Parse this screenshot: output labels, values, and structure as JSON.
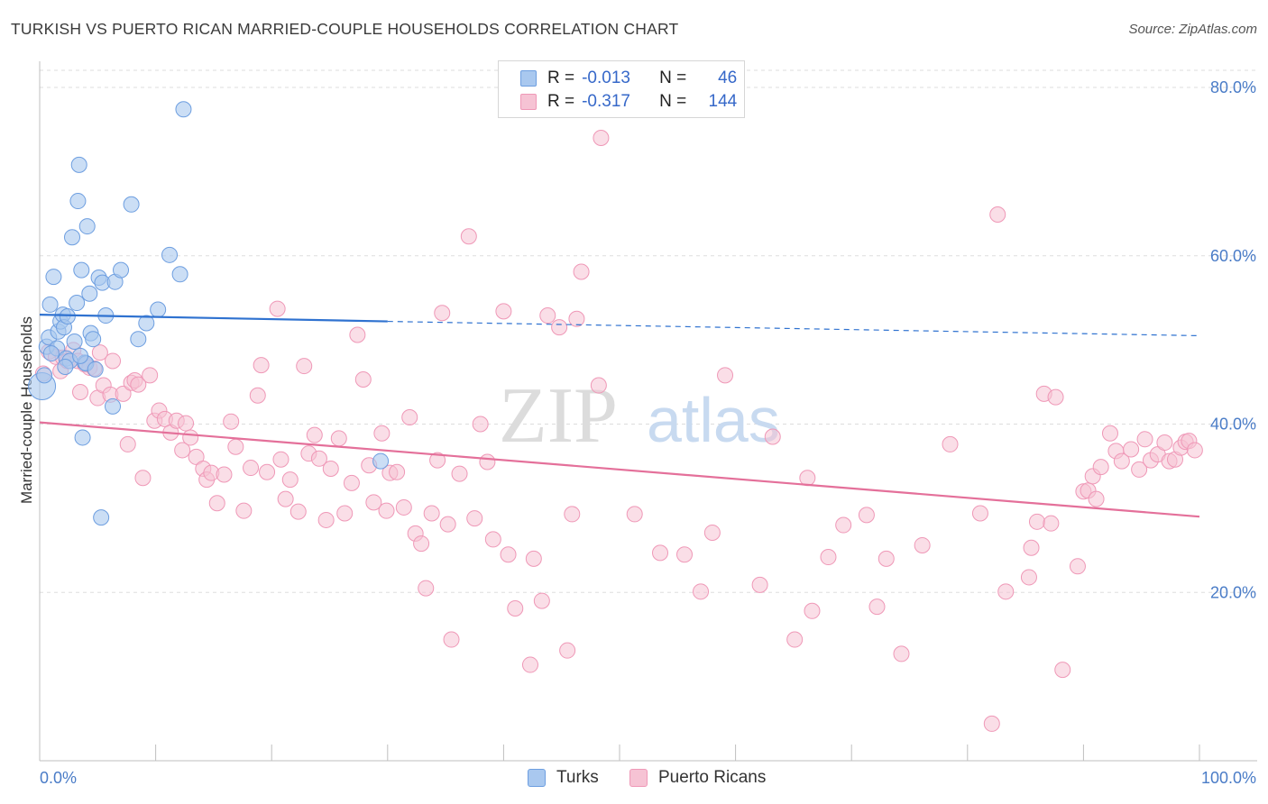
{
  "title": "TURKISH VS PUERTO RICAN MARRIED-COUPLE HOUSEHOLDS CORRELATION CHART",
  "source": "Source: ZipAtlas.com",
  "watermark": {
    "zip": "ZIP",
    "atlas": "atlas"
  },
  "legend_top": {
    "rows": [
      {
        "r_label": "R =",
        "r_value": "-0.013",
        "n_label": "N =",
        "n_value": "46"
      },
      {
        "r_label": "R =",
        "r_value": "-0.317",
        "n_label": "N =",
        "n_value": "144"
      }
    ]
  },
  "legend_bottom": {
    "items": [
      "Turks",
      "Puerto Ricans"
    ]
  },
  "colors": {
    "turks_fill": "#a9c8ef",
    "turks_stroke": "#6d9ee0",
    "turks_line": "#2f72d0",
    "pr_fill": "#f6c3d4",
    "pr_stroke": "#ef98b7",
    "pr_line": "#e4709a",
    "tick_text": "#4a7cc7",
    "grid": "#dddddd"
  },
  "chart_data": {
    "type": "scatter",
    "title": "TURKISH VS PUERTO RICAN MARRIED-COUPLE HOUSEHOLDS CORRELATION CHART",
    "xlabel": "",
    "ylabel": "Married-couple Households",
    "xlim": [
      0,
      100
    ],
    "ylim": [
      0,
      83
    ],
    "x_tick_labels": [
      "0.0%",
      "100.0%"
    ],
    "y_ticks": [
      20,
      40,
      60,
      80
    ],
    "y_tick_labels": [
      "20.0%",
      "40.0%",
      "60.0%",
      "80.0%"
    ],
    "grid": true,
    "legend_position": "top-center",
    "series": [
      {
        "name": "Turks",
        "r": -0.013,
        "n": 46,
        "trend": {
          "x": [
            0,
            30,
            100
          ],
          "y": [
            53.0,
            52.2,
            50.5
          ],
          "solid_until_x": 30
        },
        "points": [
          [
            0.2,
            44.5
          ],
          [
            0.4,
            45.8
          ],
          [
            0.6,
            49.2
          ],
          [
            0.8,
            50.3
          ],
          [
            0.9,
            54.2
          ],
          [
            1.2,
            57.5
          ],
          [
            1.5,
            49.0
          ],
          [
            1.6,
            51.0
          ],
          [
            1.8,
            52.2
          ],
          [
            2.0,
            53.0
          ],
          [
            2.1,
            51.5
          ],
          [
            2.3,
            47.8
          ],
          [
            2.4,
            52.8
          ],
          [
            2.6,
            47.5
          ],
          [
            2.8,
            62.2
          ],
          [
            3.0,
            49.8
          ],
          [
            3.2,
            54.4
          ],
          [
            3.3,
            66.5
          ],
          [
            3.4,
            70.8
          ],
          [
            3.6,
            58.3
          ],
          [
            3.7,
            38.4
          ],
          [
            3.9,
            47.3
          ],
          [
            4.0,
            47.2
          ],
          [
            4.1,
            63.5
          ],
          [
            4.3,
            55.5
          ],
          [
            4.4,
            50.8
          ],
          [
            4.6,
            50.1
          ],
          [
            5.1,
            57.4
          ],
          [
            5.3,
            28.9
          ],
          [
            5.4,
            56.8
          ],
          [
            5.7,
            52.9
          ],
          [
            6.3,
            42.1
          ],
          [
            6.5,
            56.9
          ],
          [
            7.0,
            58.3
          ],
          [
            7.9,
            66.1
          ],
          [
            8.5,
            50.1
          ],
          [
            9.2,
            52.0
          ],
          [
            10.2,
            53.6
          ],
          [
            11.2,
            60.1
          ],
          [
            12.1,
            57.8
          ],
          [
            12.4,
            77.4
          ],
          [
            29.4,
            35.6
          ],
          [
            1.0,
            48.4
          ],
          [
            2.2,
            46.8
          ],
          [
            3.5,
            48.1
          ],
          [
            4.8,
            46.5
          ]
        ]
      },
      {
        "name": "Puerto Ricans",
        "r": -0.317,
        "n": 144,
        "trend": {
          "x": [
            0,
            100
          ],
          "y": [
            40.2,
            29.0
          ]
        },
        "points": [
          [
            0.3,
            46.0
          ],
          [
            0.8,
            48.6
          ],
          [
            1.4,
            48.0
          ],
          [
            1.8,
            46.3
          ],
          [
            2.0,
            47.9
          ],
          [
            2.4,
            47.5
          ],
          [
            2.9,
            48.8
          ],
          [
            3.3,
            47.5
          ],
          [
            3.5,
            43.8
          ],
          [
            3.9,
            47.1
          ],
          [
            4.3,
            46.7
          ],
          [
            4.7,
            46.6
          ],
          [
            5.0,
            43.1
          ],
          [
            5.2,
            48.5
          ],
          [
            5.5,
            44.6
          ],
          [
            6.1,
            43.5
          ],
          [
            6.3,
            47.5
          ],
          [
            7.2,
            43.6
          ],
          [
            7.6,
            37.6
          ],
          [
            7.9,
            44.9
          ],
          [
            8.2,
            45.2
          ],
          [
            8.5,
            44.7
          ],
          [
            8.9,
            33.6
          ],
          [
            9.5,
            45.8
          ],
          [
            9.9,
            40.4
          ],
          [
            10.3,
            41.6
          ],
          [
            10.8,
            40.6
          ],
          [
            11.3,
            39.0
          ],
          [
            11.8,
            40.4
          ],
          [
            12.3,
            36.9
          ],
          [
            12.6,
            40.1
          ],
          [
            13.0,
            38.4
          ],
          [
            13.5,
            36.1
          ],
          [
            14.1,
            34.7
          ],
          [
            14.4,
            33.4
          ],
          [
            14.8,
            34.2
          ],
          [
            15.3,
            30.6
          ],
          [
            15.9,
            34.0
          ],
          [
            16.5,
            40.3
          ],
          [
            16.9,
            37.3
          ],
          [
            17.6,
            29.7
          ],
          [
            18.2,
            34.8
          ],
          [
            18.8,
            43.4
          ],
          [
            19.1,
            47.0
          ],
          [
            19.6,
            34.3
          ],
          [
            20.5,
            53.7
          ],
          [
            20.8,
            35.8
          ],
          [
            21.2,
            31.1
          ],
          [
            21.6,
            33.4
          ],
          [
            22.3,
            29.6
          ],
          [
            22.8,
            46.9
          ],
          [
            23.2,
            36.5
          ],
          [
            23.7,
            38.7
          ],
          [
            24.1,
            35.9
          ],
          [
            24.7,
            28.6
          ],
          [
            25.1,
            34.7
          ],
          [
            25.8,
            38.3
          ],
          [
            26.3,
            29.4
          ],
          [
            26.9,
            33.0
          ],
          [
            27.4,
            50.6
          ],
          [
            27.9,
            45.3
          ],
          [
            28.4,
            35.1
          ],
          [
            28.8,
            30.7
          ],
          [
            29.5,
            38.9
          ],
          [
            29.9,
            29.7
          ],
          [
            30.2,
            34.2
          ],
          [
            30.8,
            34.3
          ],
          [
            31.4,
            30.1
          ],
          [
            31.9,
            40.8
          ],
          [
            32.4,
            27.0
          ],
          [
            32.9,
            25.8
          ],
          [
            33.3,
            20.5
          ],
          [
            33.8,
            29.4
          ],
          [
            34.3,
            35.7
          ],
          [
            34.7,
            53.2
          ],
          [
            35.2,
            28.1
          ],
          [
            35.5,
            14.4
          ],
          [
            36.2,
            34.1
          ],
          [
            37.0,
            62.3
          ],
          [
            37.5,
            28.8
          ],
          [
            38.0,
            40.0
          ],
          [
            38.6,
            35.5
          ],
          [
            39.1,
            26.3
          ],
          [
            40.0,
            53.4
          ],
          [
            40.4,
            24.5
          ],
          [
            41.0,
            18.1
          ],
          [
            42.3,
            11.4
          ],
          [
            42.6,
            24.0
          ],
          [
            43.3,
            19.0
          ],
          [
            43.8,
            52.9
          ],
          [
            44.8,
            51.5
          ],
          [
            45.5,
            13.1
          ],
          [
            45.9,
            29.3
          ],
          [
            46.3,
            52.5
          ],
          [
            46.7,
            58.1
          ],
          [
            48.4,
            74.0
          ],
          [
            48.2,
            44.6
          ],
          [
            51.3,
            29.3
          ],
          [
            53.5,
            24.7
          ],
          [
            55.6,
            24.5
          ],
          [
            57.0,
            20.1
          ],
          [
            58.0,
            27.1
          ],
          [
            59.1,
            45.8
          ],
          [
            62.1,
            20.9
          ],
          [
            63.2,
            38.5
          ],
          [
            65.1,
            14.4
          ],
          [
            66.2,
            33.6
          ],
          [
            66.6,
            17.8
          ],
          [
            68.0,
            24.2
          ],
          [
            69.3,
            28.0
          ],
          [
            71.3,
            29.2
          ],
          [
            72.2,
            18.3
          ],
          [
            73.0,
            24.0
          ],
          [
            74.3,
            12.7
          ],
          [
            76.1,
            25.6
          ],
          [
            78.5,
            37.6
          ],
          [
            81.1,
            29.4
          ],
          [
            82.1,
            4.4
          ],
          [
            82.6,
            64.9
          ],
          [
            83.3,
            20.1
          ],
          [
            85.3,
            21.8
          ],
          [
            85.5,
            25.3
          ],
          [
            86.0,
            28.4
          ],
          [
            86.6,
            43.6
          ],
          [
            87.2,
            28.2
          ],
          [
            87.6,
            43.2
          ],
          [
            88.2,
            10.8
          ],
          [
            89.5,
            23.1
          ],
          [
            90.0,
            32.0
          ],
          [
            90.4,
            32.1
          ],
          [
            90.8,
            33.8
          ],
          [
            91.1,
            31.1
          ],
          [
            91.5,
            34.9
          ],
          [
            92.3,
            38.9
          ],
          [
            92.8,
            36.8
          ],
          [
            93.3,
            35.6
          ],
          [
            94.1,
            37.0
          ],
          [
            94.8,
            34.6
          ],
          [
            95.3,
            38.2
          ],
          [
            95.8,
            35.7
          ],
          [
            96.4,
            36.4
          ],
          [
            97.0,
            37.8
          ],
          [
            97.4,
            35.6
          ],
          [
            97.9,
            35.8
          ],
          [
            98.4,
            37.2
          ],
          [
            98.8,
            37.9
          ],
          [
            99.1,
            38.0
          ],
          [
            99.6,
            36.9
          ]
        ]
      }
    ]
  }
}
